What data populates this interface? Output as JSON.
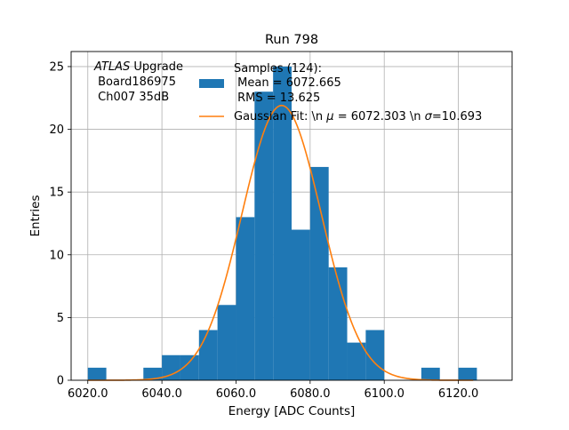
{
  "chart_data": {
    "type": "bar",
    "title": "Run 798",
    "xlabel": "Energy [ADC Counts]",
    "ylabel": "Entries",
    "xlim": [
      6015.5,
      6134.5
    ],
    "ylim": [
      0,
      26.2
    ],
    "xticks": [
      6020.0,
      6040.0,
      6060.0,
      6080.0,
      6100.0,
      6120.0
    ],
    "xtick_labels": [
      "6020.0",
      "6040.0",
      "6060.0",
      "6080.0",
      "6100.0",
      "6120.0"
    ],
    "yticks": [
      0,
      5,
      10,
      15,
      20,
      25
    ],
    "ytick_labels": [
      "0",
      "5",
      "10",
      "15",
      "20",
      "25"
    ],
    "grid": true,
    "bin_edges": [
      6020,
      6025,
      6030,
      6035,
      6040,
      6045,
      6050,
      6055,
      6060,
      6065,
      6070,
      6075,
      6080,
      6085,
      6090,
      6095,
      6100,
      6105,
      6110,
      6115,
      6120,
      6125
    ],
    "counts": [
      1,
      0,
      0,
      1,
      2,
      2,
      4,
      6,
      13,
      23,
      25,
      12,
      17,
      9,
      3,
      4,
      0,
      0,
      1,
      0,
      1
    ],
    "bar_color": "#1f77b4",
    "fit": {
      "mu": 6072.303,
      "sigma": 10.693,
      "amplitude": 21.9,
      "x_range": [
        6020,
        6124
      ],
      "color": "#ff7f0e"
    },
    "legend": {
      "placement": "top-right",
      "samples_line1": "Samples (124):",
      "samples_line2": " Mean = 6072.665",
      "samples_line3": " RMS = 13.625",
      "fit_prefix": "Gaussian Fit: \\n ",
      "mu_symbol": "μ",
      "fit_mid": " = 6072.303 \\n ",
      "sigma_symbol": "σ",
      "fit_suffix": "=10.693"
    },
    "annotation": {
      "italic": "ATLAS",
      "rest": " Upgrade",
      "line2": " Board186975",
      "line3": " Ch007 35dB"
    }
  }
}
